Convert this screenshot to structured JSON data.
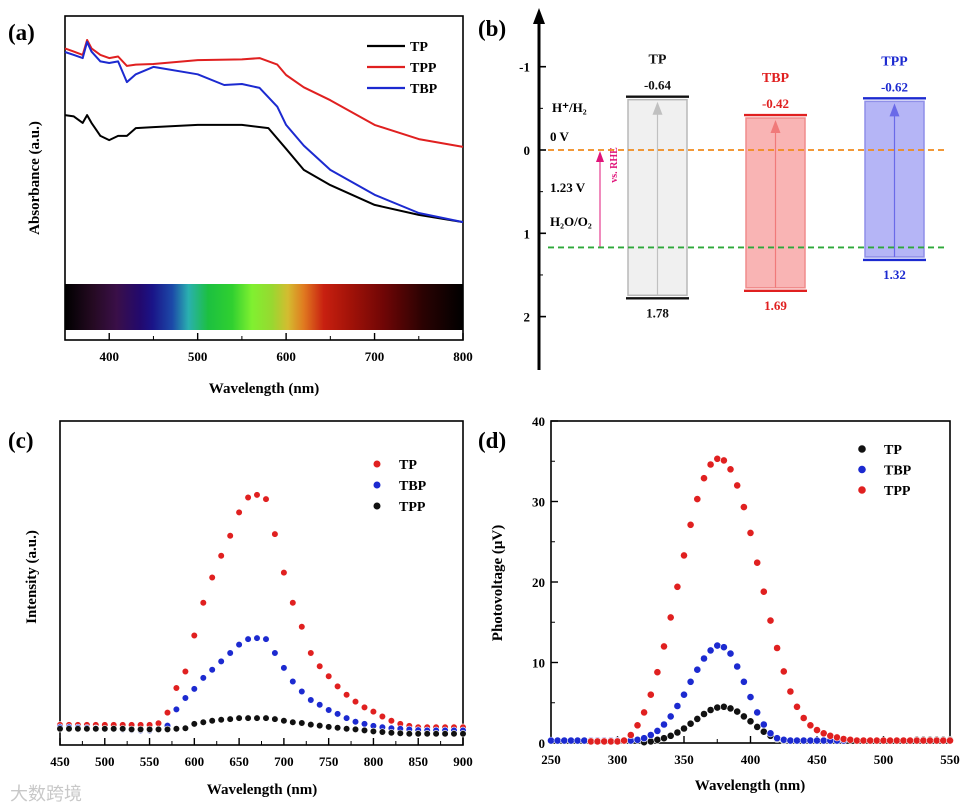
{
  "watermark": "大数跨境",
  "chart_data": [
    {
      "panel": "(a)",
      "type": "line",
      "xlabel": "Wavelength (nm)",
      "ylabel": "Absorbance (a.u.)",
      "xlim": [
        350,
        800
      ],
      "ylim": [
        0,
        1
      ],
      "xticks": [
        400,
        500,
        600,
        700,
        800
      ],
      "legend_position": "top-right",
      "series": [
        {
          "name": "TP",
          "color": "#000000",
          "x": [
            350,
            360,
            370,
            375,
            380,
            390,
            400,
            410,
            420,
            430,
            450,
            500,
            550,
            580,
            600,
            620,
            650,
            700,
            750,
            800
          ],
          "y": [
            0.694,
            0.69,
            0.67,
            0.694,
            0.67,
            0.63,
            0.617,
            0.63,
            0.63,
            0.654,
            0.657,
            0.664,
            0.664,
            0.654,
            0.59,
            0.525,
            0.478,
            0.417,
            0.386,
            0.364
          ]
        },
        {
          "name": "TPP",
          "color": "#e02020",
          "x": [
            350,
            360,
            370,
            375,
            380,
            390,
            400,
            410,
            420,
            430,
            450,
            500,
            550,
            570,
            590,
            600,
            620,
            650,
            700,
            750,
            800
          ],
          "y": [
            0.9,
            0.89,
            0.88,
            0.926,
            0.9,
            0.88,
            0.87,
            0.875,
            0.846,
            0.85,
            0.852,
            0.864,
            0.866,
            0.87,
            0.85,
            0.818,
            0.78,
            0.74,
            0.664,
            0.62,
            0.596
          ]
        },
        {
          "name": "TBP",
          "color": "#1c2ad0",
          "x": [
            350,
            360,
            370,
            375,
            380,
            390,
            400,
            410,
            420,
            430,
            450,
            500,
            530,
            550,
            570,
            590,
            600,
            620,
            650,
            700,
            750,
            800
          ],
          "y": [
            0.889,
            0.88,
            0.87,
            0.92,
            0.89,
            0.86,
            0.855,
            0.86,
            0.796,
            0.82,
            0.843,
            0.82,
            0.787,
            0.79,
            0.778,
            0.72,
            0.664,
            0.6,
            0.525,
            0.448,
            0.392,
            0.364
          ]
        }
      ]
    },
    {
      "panel": "(b)",
      "type": "bar",
      "ylabel_direction": "inverted",
      "ylim": [
        -1.6,
        2.65
      ],
      "yticks": [
        -1,
        0,
        1,
        2
      ],
      "bars": [
        {
          "name": "TP",
          "cb": -0.64,
          "vb": 1.78,
          "cb_label": "-0.64",
          "vb_label": "1.78",
          "color": "#111111",
          "fill": "#f0f0f0",
          "edge": "#b8b8b8",
          "arrow": "#c0c0c0"
        },
        {
          "name": "TBP",
          "cb": -0.42,
          "vb": 1.69,
          "cb_label": "-0.42",
          "vb_label": "1.69",
          "color": "#e02020",
          "fill": "#f9b4b4",
          "edge": "#f08c8c",
          "arrow": "#f07a7a"
        },
        {
          "name": "TPP",
          "cb": -0.62,
          "vb": 1.32,
          "cb_label": "-0.62",
          "vb_label": "1.32",
          "color": "#1c2ad0",
          "fill": "#b5b5f6",
          "edge": "#8f8fe8",
          "arrow": "#6a6ae8"
        }
      ],
      "reference_lines": [
        {
          "value": 0,
          "color": "#f08a1c"
        },
        {
          "value": 1.23,
          "color": "#2ea83a"
        }
      ],
      "annotations": {
        "h_h2": "H⁺/H₂",
        "zero_v": "0 V",
        "gap": "1.23 V",
        "h2o_o2": "H₂O/O₂",
        "vs_rhe": "vs. RHE",
        "vs_rhe_color": "#e0147a"
      }
    },
    {
      "panel": "(c)",
      "type": "scatter",
      "xlabel": "Wavelength (nm)",
      "ylabel": "Intensity (a.u.)",
      "xlim": [
        450,
        900
      ],
      "ylim": [
        0,
        1
      ],
      "xticks": [
        450,
        500,
        550,
        600,
        650,
        700,
        750,
        800,
        850,
        900
      ],
      "legend_position": "top-right",
      "x": [
        450,
        460,
        470,
        480,
        490,
        500,
        510,
        520,
        530,
        540,
        550,
        560,
        570,
        580,
        590,
        600,
        610,
        620,
        630,
        640,
        650,
        660,
        670,
        680,
        690,
        700,
        710,
        720,
        730,
        740,
        750,
        760,
        770,
        780,
        790,
        800,
        810,
        820,
        830,
        840,
        850,
        860,
        870,
        880,
        890,
        900
      ],
      "series": [
        {
          "name": "TP",
          "color": "#e02020",
          "y": [
            0.062,
            0.062,
            0.062,
            0.062,
            0.062,
            0.062,
            0.062,
            0.062,
            0.062,
            0.062,
            0.062,
            0.067,
            0.1,
            0.176,
            0.227,
            0.338,
            0.439,
            0.517,
            0.584,
            0.646,
            0.718,
            0.764,
            0.772,
            0.759,
            0.651,
            0.532,
            0.439,
            0.365,
            0.284,
            0.243,
            0.212,
            0.181,
            0.155,
            0.134,
            0.116,
            0.103,
            0.088,
            0.075,
            0.065,
            0.059,
            0.055,
            0.055,
            0.055,
            0.055,
            0.055,
            0.055
          ]
        },
        {
          "name": "TBP",
          "color": "#1c2ad0",
          "y": [
            0.055,
            0.055,
            0.054,
            0.053,
            0.052,
            0.05,
            0.049,
            0.048,
            0.046,
            0.045,
            0.045,
            0.048,
            0.06,
            0.11,
            0.145,
            0.173,
            0.207,
            0.232,
            0.258,
            0.284,
            0.31,
            0.327,
            0.33,
            0.327,
            0.284,
            0.238,
            0.196,
            0.165,
            0.139,
            0.124,
            0.108,
            0.096,
            0.083,
            0.072,
            0.065,
            0.059,
            0.055,
            0.052,
            0.05,
            0.048,
            0.046,
            0.045,
            0.045,
            0.045,
            0.045,
            0.045
          ]
        },
        {
          "name": "TPP",
          "color": "#111111",
          "y": [
            0.05,
            0.05,
            0.05,
            0.05,
            0.05,
            0.05,
            0.05,
            0.05,
            0.048,
            0.048,
            0.048,
            0.048,
            0.048,
            0.05,
            0.052,
            0.065,
            0.07,
            0.075,
            0.078,
            0.08,
            0.083,
            0.083,
            0.083,
            0.083,
            0.08,
            0.075,
            0.07,
            0.068,
            0.063,
            0.06,
            0.056,
            0.053,
            0.05,
            0.048,
            0.045,
            0.042,
            0.04,
            0.038,
            0.036,
            0.035,
            0.035,
            0.035,
            0.035,
            0.035,
            0.035,
            0.035
          ]
        }
      ]
    },
    {
      "panel": "(d)",
      "type": "scatter",
      "xlabel": "Wavelength (nm)",
      "ylabel": "Photovoltage (μV)",
      "xlim": [
        250,
        550
      ],
      "ylim": [
        0,
        40
      ],
      "xticks": [
        250,
        300,
        350,
        400,
        450,
        500,
        550
      ],
      "yticks": [
        0,
        10,
        20,
        30,
        40
      ],
      "legend_position": "top-right",
      "series": [
        {
          "name": "TP",
          "color": "#111111",
          "x": [
            320,
            325,
            330,
            335,
            340,
            345,
            350,
            355,
            360,
            365,
            370,
            375,
            380,
            385,
            390,
            395,
            400,
            405,
            410,
            415,
            420,
            425,
            430,
            435,
            440,
            445,
            450,
            455,
            460,
            525,
            530,
            535,
            540,
            545,
            550
          ],
          "y": [
            0.1,
            0.2,
            0.4,
            0.6,
            0.9,
            1.3,
            1.8,
            2.4,
            3.0,
            3.6,
            4.1,
            4.4,
            4.5,
            4.3,
            3.9,
            3.3,
            2.7,
            2.0,
            1.4,
            0.9,
            0.5,
            0.3,
            0.3,
            0.3,
            0.3,
            0.3,
            0.3,
            0.3,
            0.3,
            0.4,
            0.4,
            0.4,
            0.4,
            0.4,
            0.4
          ]
        },
        {
          "name": "TBP",
          "color": "#1c2ad0",
          "x": [
            250,
            255,
            260,
            265,
            270,
            275,
            280,
            285,
            290,
            295,
            300,
            305,
            310,
            315,
            320,
            325,
            330,
            335,
            340,
            345,
            350,
            355,
            360,
            365,
            370,
            375,
            380,
            385,
            390,
            395,
            400,
            405,
            410,
            415,
            420,
            425,
            430,
            435,
            440,
            445,
            450,
            455,
            460,
            465,
            470
          ],
          "y": [
            0.3,
            0.3,
            0.3,
            0.3,
            0.3,
            0.3,
            0.3,
            0.3,
            0.3,
            0.3,
            0.3,
            0.3,
            0.3,
            0.4,
            0.6,
            1.0,
            1.5,
            2.3,
            3.3,
            4.6,
            6.0,
            7.6,
            9.1,
            10.5,
            11.5,
            12.1,
            11.9,
            11.1,
            9.5,
            7.6,
            5.7,
            3.8,
            2.3,
            1.2,
            0.6,
            0.4,
            0.3,
            0.3,
            0.3,
            0.3,
            0.3,
            0.3,
            0.3,
            0.3,
            0.3
          ]
        },
        {
          "name": "TPP",
          "color": "#e02020",
          "x": [
            280,
            285,
            290,
            295,
            300,
            305,
            310,
            315,
            320,
            325,
            330,
            335,
            340,
            345,
            350,
            355,
            360,
            365,
            370,
            375,
            380,
            385,
            390,
            395,
            400,
            405,
            410,
            415,
            420,
            425,
            430,
            435,
            440,
            445,
            450,
            455,
            460,
            465,
            470,
            475,
            480,
            485,
            490,
            495,
            500,
            505,
            510,
            515,
            520,
            525,
            530,
            535,
            540,
            545,
            550
          ],
          "y": [
            0.2,
            0.2,
            0.2,
            0.2,
            0.2,
            0.3,
            1.0,
            2.2,
            3.8,
            6.0,
            8.8,
            12.0,
            15.6,
            19.4,
            23.3,
            27.1,
            30.3,
            32.9,
            34.6,
            35.3,
            35.1,
            34.0,
            32.0,
            29.3,
            26.1,
            22.4,
            18.8,
            15.2,
            11.8,
            8.9,
            6.4,
            4.5,
            3.1,
            2.2,
            1.6,
            1.2,
            0.9,
            0.7,
            0.5,
            0.4,
            0.3,
            0.3,
            0.3,
            0.3,
            0.3,
            0.3,
            0.3,
            0.3,
            0.3,
            0.3,
            0.3,
            0.3,
            0.3,
            0.3,
            0.3
          ]
        }
      ]
    }
  ]
}
